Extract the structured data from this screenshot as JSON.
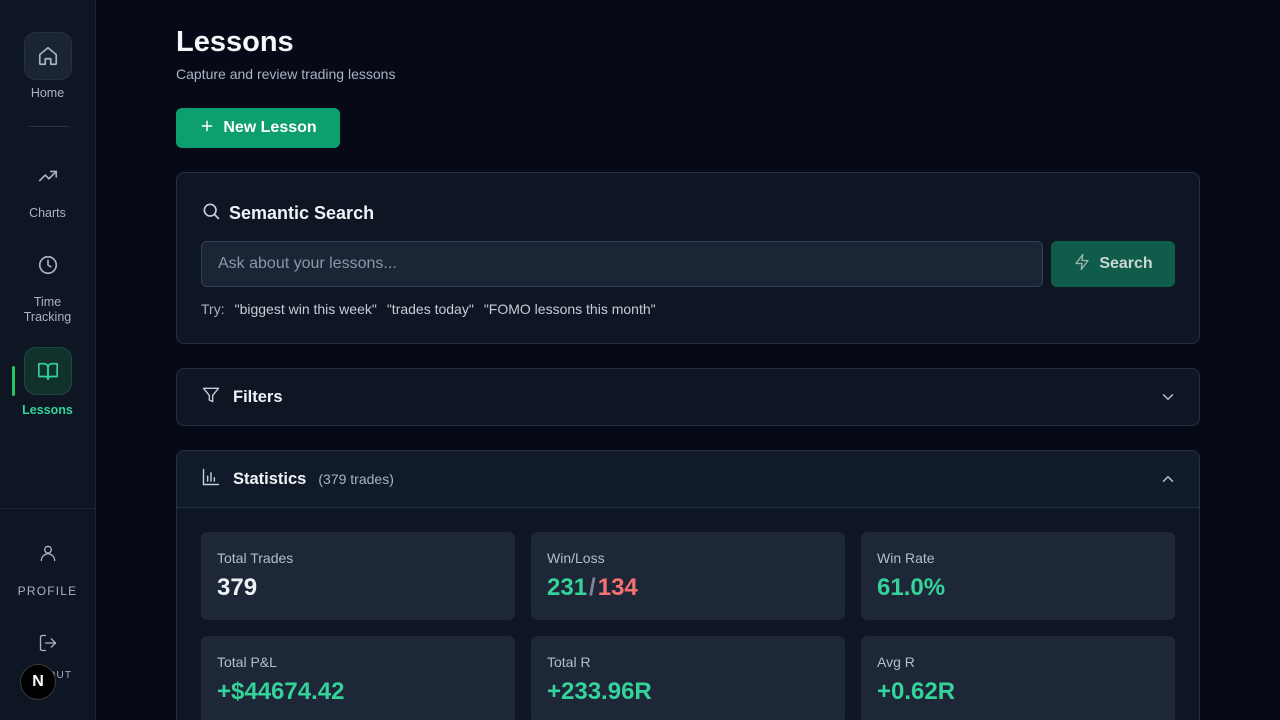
{
  "sidebar": {
    "items": [
      {
        "label": "Home",
        "icon": "home-icon"
      },
      {
        "label": "Charts",
        "icon": "trending-up-icon"
      },
      {
        "label": "Time Tracking",
        "icon": "clock-icon"
      },
      {
        "label": "Lessons",
        "icon": "book-open-icon",
        "active": true
      }
    ],
    "profile_label": "PROFILE",
    "logout_label": "LOGOUT",
    "badge": "N"
  },
  "header": {
    "title": "Lessons",
    "subtitle": "Capture and review trading lessons",
    "new_button": "New Lesson"
  },
  "search": {
    "title": "Semantic Search",
    "placeholder": "Ask about your lessons...",
    "value": "",
    "button": "Search",
    "try_label": "Try:",
    "suggestions": [
      "\"biggest win this week\"",
      "\"trades today\"",
      "\"FOMO lessons this month\""
    ]
  },
  "filters": {
    "title": "Filters"
  },
  "statistics": {
    "title": "Statistics",
    "count": "(379 trades)",
    "cards": {
      "total_trades": {
        "label": "Total Trades",
        "value": "379"
      },
      "win_loss": {
        "label": "Win/Loss",
        "wins": "231",
        "sep": "/",
        "losses": "134"
      },
      "win_rate": {
        "label": "Win Rate",
        "value": "61.0%"
      },
      "total_pnl": {
        "label": "Total P&L",
        "value": "+$44674.42"
      },
      "total_r": {
        "label": "Total R",
        "value": "+233.96R"
      },
      "avg_r": {
        "label": "Avg R",
        "value": "+0.62R"
      }
    }
  },
  "colors": {
    "accent": "#0e9f6e",
    "positive": "#34d399",
    "negative": "#f87171",
    "background": "#060a16"
  }
}
